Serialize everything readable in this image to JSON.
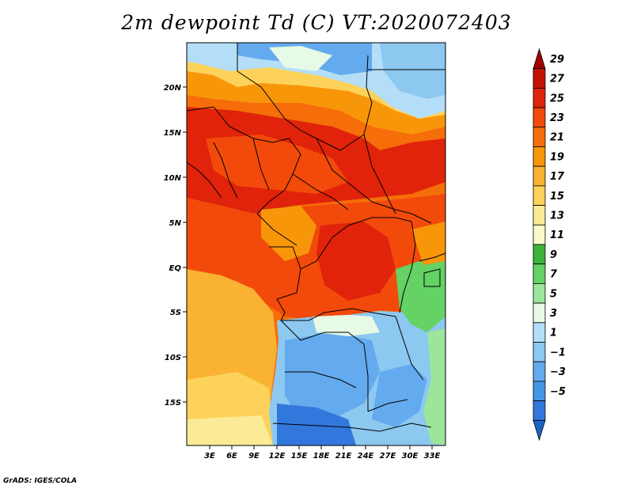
{
  "title": "2m dewpoint Td (C) VT:2020072403",
  "credit": "GrADS: IGES/COLA",
  "map": {
    "lon_ticks": [
      "3E",
      "6E",
      "9E",
      "12E",
      "15E",
      "18E",
      "21E",
      "24E",
      "27E",
      "30E",
      "33E"
    ],
    "lat_ticks": [
      "20N",
      "15N",
      "10N",
      "5N",
      "EQ",
      "5S",
      "10S",
      "15S"
    ]
  },
  "colorbar": {
    "labels": [
      "29",
      "27",
      "25",
      "23",
      "21",
      "19",
      "17",
      "15",
      "13",
      "11",
      "9",
      "7",
      "5",
      "3",
      "1",
      "−1",
      "−3",
      "−5"
    ],
    "colors": [
      "#a50000",
      "#c41200",
      "#e0230a",
      "#f24a0a",
      "#f56e0a",
      "#f8960a",
      "#f9b232",
      "#fcd25a",
      "#fceb96",
      "#fafac8",
      "#3cb43c",
      "#64d264",
      "#9be69b",
      "#e6fae6",
      "#b4def8",
      "#8cc8f0",
      "#64aaee",
      "#4696e6",
      "#3278dc",
      "#1e64c8"
    ]
  }
}
